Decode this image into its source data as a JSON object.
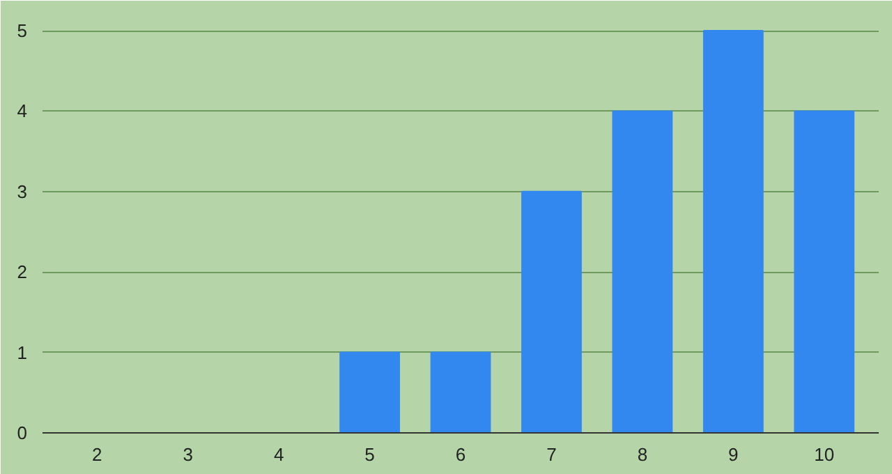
{
  "chart_data": {
    "type": "bar",
    "categories": [
      "2",
      "3",
      "4",
      "5",
      "6",
      "7",
      "8",
      "9",
      "10"
    ],
    "values": [
      0,
      0,
      0,
      1,
      1,
      3,
      4,
      5,
      4
    ],
    "color": "#3388f0",
    "ylim": [
      0,
      5.2
    ],
    "yticks": [
      0,
      1,
      2,
      3,
      4,
      5
    ],
    "grid": "y"
  }
}
